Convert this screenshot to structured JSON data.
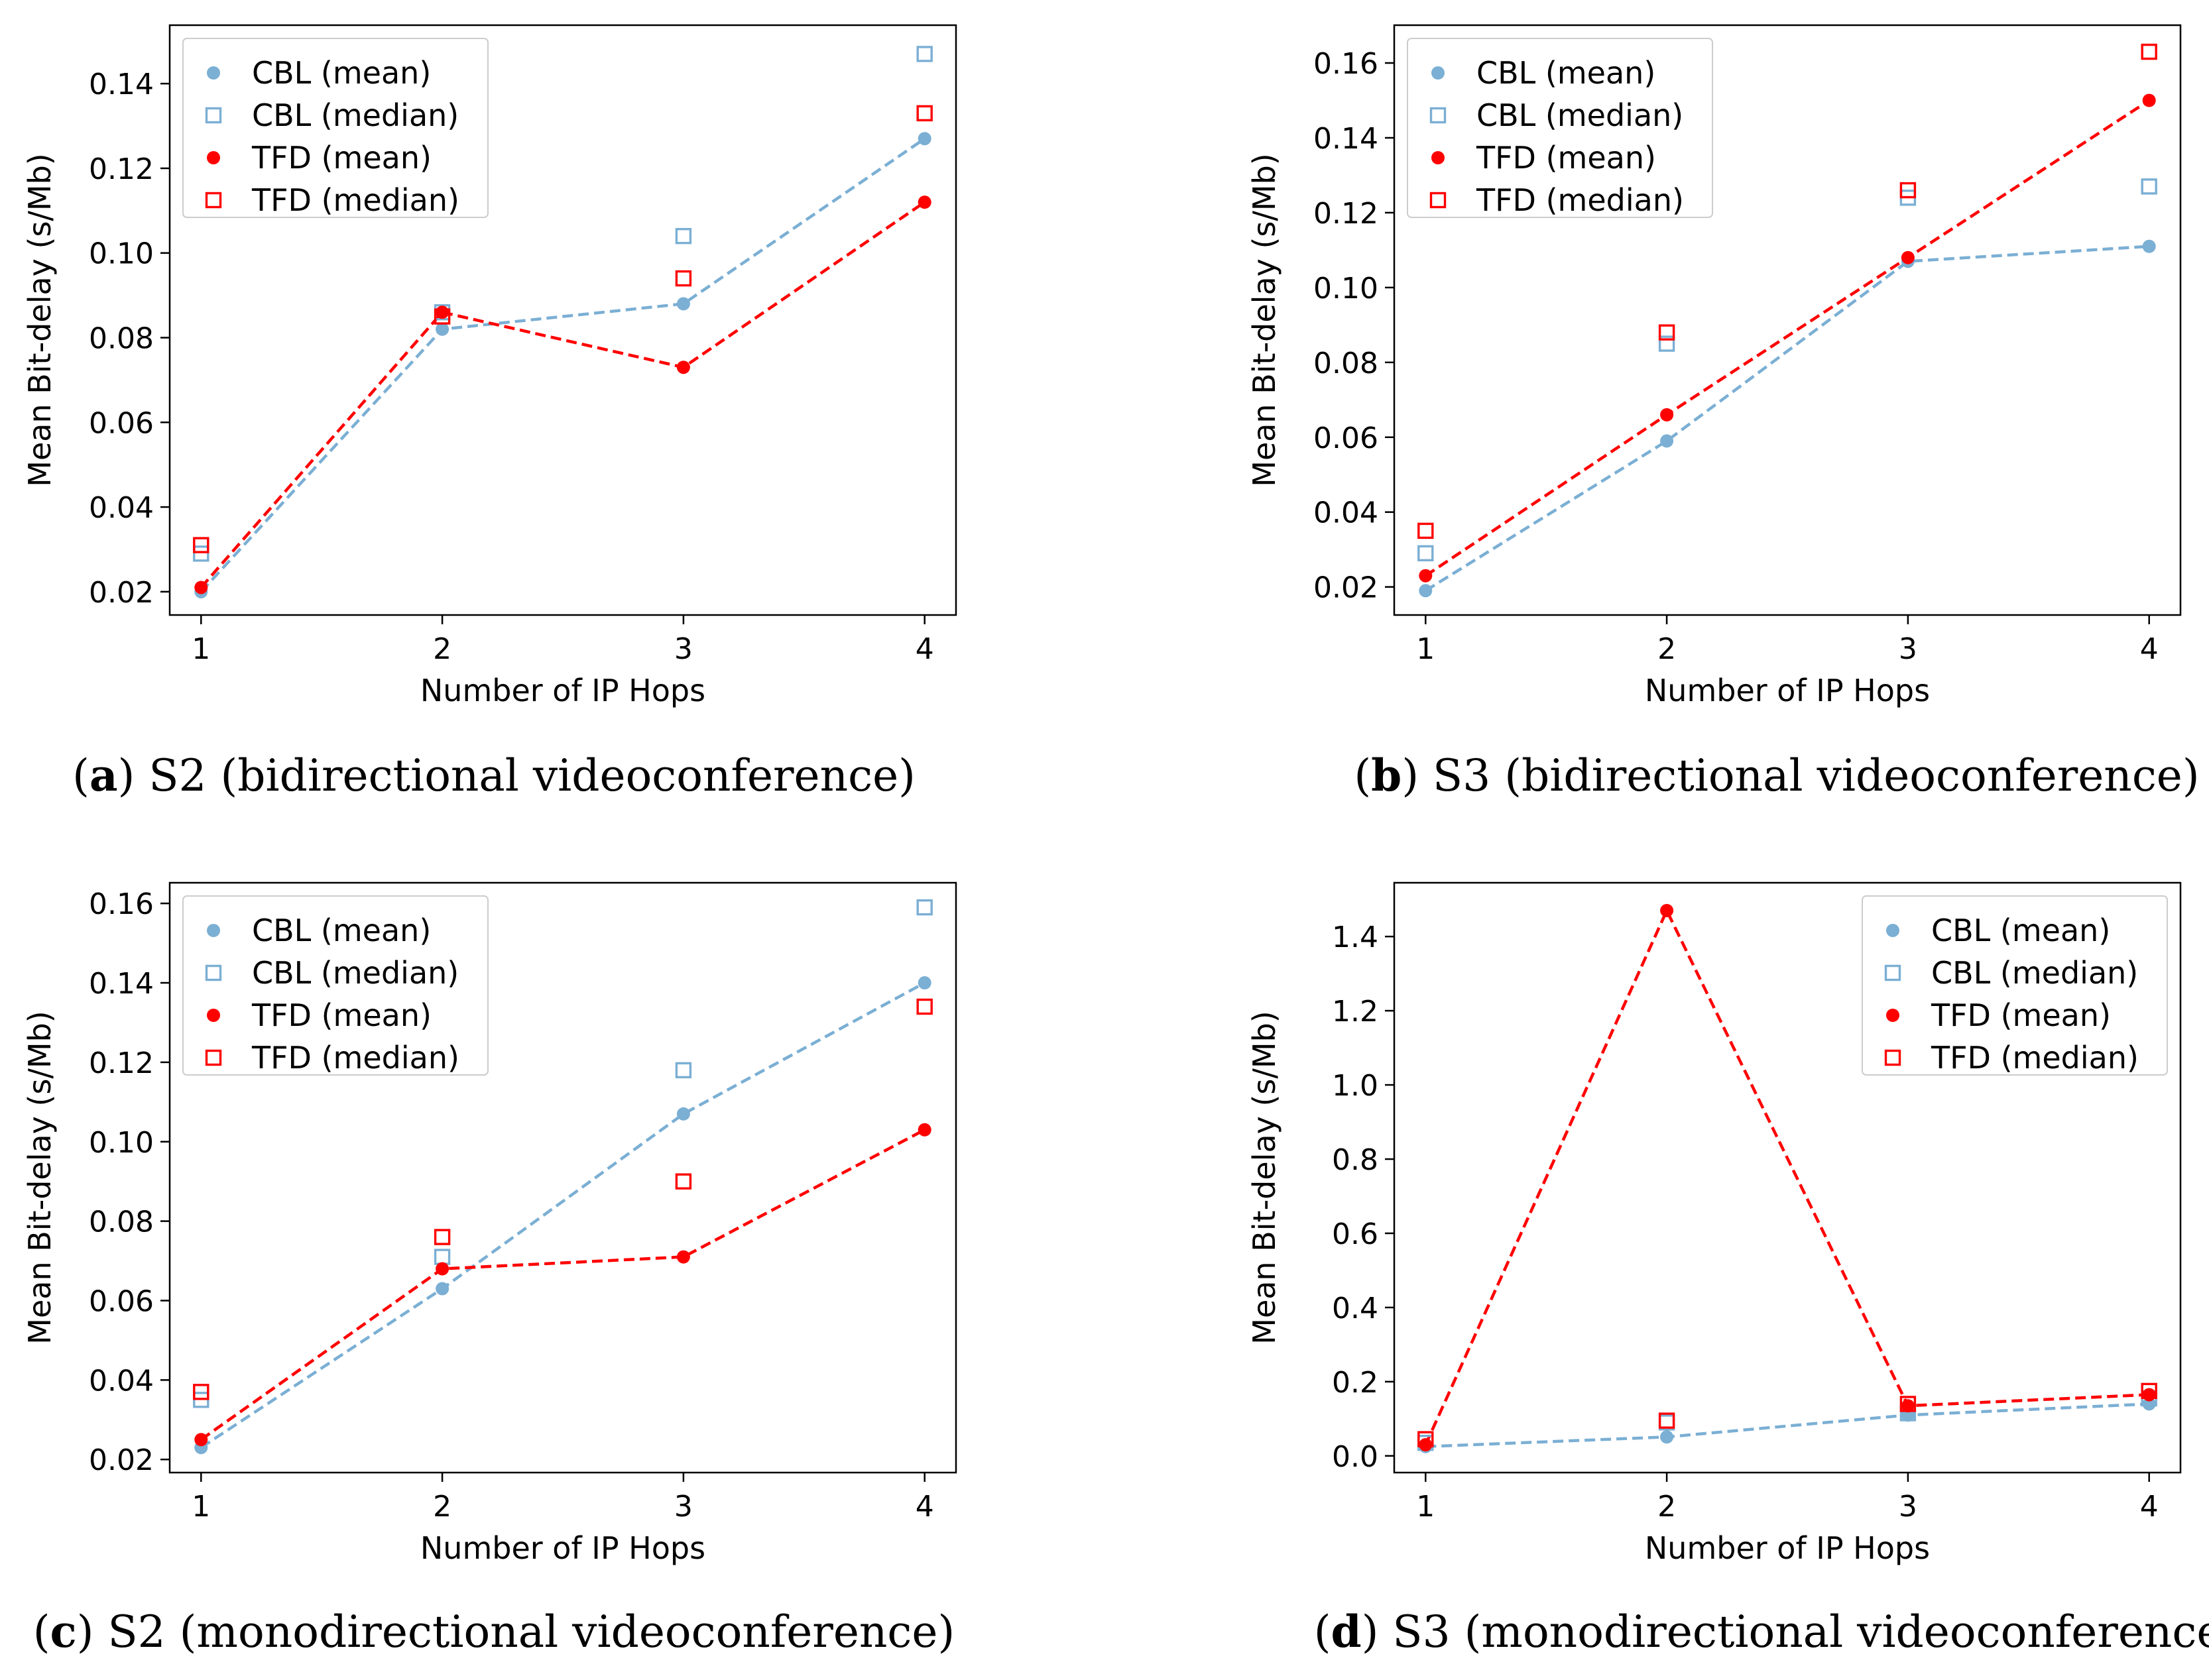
{
  "colors": {
    "cbl": "#7bafd4",
    "tfd": "#ff0000",
    "axis": "#000000"
  },
  "legend_entries": [
    "CBL (mean)",
    "CBL (median)",
    "TFD (mean)",
    "TFD (median)"
  ],
  "chart_data": [
    {
      "type": "line",
      "panel": "a",
      "caption_letter": "a",
      "caption_text": "S2 (bidirectional videoconference)",
      "xlabel": "Number of IP Hops",
      "ylabel": "Mean Bit-delay (s/Mb)",
      "x": [
        1,
        2,
        3,
        4
      ],
      "xticks": [
        "1",
        "2",
        "3",
        "4"
      ],
      "xlim": [
        0.87,
        4.13
      ],
      "ylim": [
        0.0145,
        0.1538
      ],
      "yticks": [
        0.02,
        0.04,
        0.06,
        0.08,
        0.1,
        0.12,
        0.14
      ],
      "ytick_labels": [
        "0.02",
        "0.04",
        "0.06",
        "0.08",
        "0.10",
        "0.12",
        "0.14"
      ],
      "legend_position": "upper-left",
      "series": [
        {
          "name": "CBL (mean)",
          "kind": "mean",
          "color_key": "cbl",
          "values": [
            0.02,
            0.082,
            0.088,
            0.127
          ]
        },
        {
          "name": "CBL (median)",
          "kind": "median",
          "color_key": "cbl",
          "values": [
            0.029,
            0.086,
            0.104,
            0.147
          ]
        },
        {
          "name": "TFD (mean)",
          "kind": "mean",
          "color_key": "tfd",
          "values": [
            0.021,
            0.086,
            0.073,
            0.112
          ]
        },
        {
          "name": "TFD (median)",
          "kind": "median",
          "color_key": "tfd",
          "values": [
            0.031,
            0.085,
            0.094,
            0.133
          ]
        }
      ]
    },
    {
      "type": "line",
      "panel": "b",
      "caption_letter": "b",
      "caption_text": "S3 (bidirectional videoconference)",
      "xlabel": "Number of IP Hops",
      "ylabel": "Mean Bit-delay (s/Mb)",
      "x": [
        1,
        2,
        3,
        4
      ],
      "xticks": [
        "1",
        "2",
        "3",
        "4"
      ],
      "xlim": [
        0.87,
        4.13
      ],
      "ylim": [
        0.0125,
        0.1701
      ],
      "yticks": [
        0.02,
        0.04,
        0.06,
        0.08,
        0.1,
        0.12,
        0.14,
        0.16
      ],
      "ytick_labels": [
        "0.02",
        "0.04",
        "0.06",
        "0.08",
        "0.10",
        "0.12",
        "0.14",
        "0.16"
      ],
      "legend_position": "upper-left",
      "series": [
        {
          "name": "CBL (mean)",
          "kind": "mean",
          "color_key": "cbl",
          "values": [
            0.019,
            0.059,
            0.107,
            0.111
          ]
        },
        {
          "name": "CBL (median)",
          "kind": "median",
          "color_key": "cbl",
          "values": [
            0.029,
            0.085,
            0.124,
            0.127
          ]
        },
        {
          "name": "TFD (mean)",
          "kind": "mean",
          "color_key": "tfd",
          "values": [
            0.023,
            0.066,
            0.108,
            0.15
          ]
        },
        {
          "name": "TFD (median)",
          "kind": "median",
          "color_key": "tfd",
          "values": [
            0.035,
            0.088,
            0.126,
            0.163
          ]
        }
      ]
    },
    {
      "type": "line",
      "panel": "c",
      "caption_letter": "c",
      "caption_text": "S2 (monodirectional videoconference)",
      "xlabel": "Number of IP Hops",
      "ylabel": "Mean Bit-delay (s/Mb)",
      "x": [
        1,
        2,
        3,
        4
      ],
      "xticks": [
        "1",
        "2",
        "3",
        "4"
      ],
      "xlim": [
        0.87,
        4.13
      ],
      "ylim": [
        0.0167,
        0.1652
      ],
      "yticks": [
        0.02,
        0.04,
        0.06,
        0.08,
        0.1,
        0.12,
        0.14,
        0.16
      ],
      "ytick_labels": [
        "0.02",
        "0.04",
        "0.06",
        "0.08",
        "0.10",
        "0.12",
        "0.14",
        "0.16"
      ],
      "legend_position": "upper-left",
      "series": [
        {
          "name": "CBL (mean)",
          "kind": "mean",
          "color_key": "cbl",
          "values": [
            0.023,
            0.063,
            0.107,
            0.14
          ]
        },
        {
          "name": "CBL (median)",
          "kind": "median",
          "color_key": "cbl",
          "values": [
            0.035,
            0.071,
            0.118,
            0.159
          ]
        },
        {
          "name": "TFD (mean)",
          "kind": "mean",
          "color_key": "tfd",
          "values": [
            0.025,
            0.068,
            0.071,
            0.103
          ]
        },
        {
          "name": "TFD (median)",
          "kind": "median",
          "color_key": "tfd",
          "values": [
            0.037,
            0.076,
            0.09,
            0.134
          ]
        }
      ]
    },
    {
      "type": "line",
      "panel": "d",
      "caption_letter": "d",
      "caption_text": "S3 (monodirectional videoconference)",
      "xlabel": "Number of IP Hops",
      "ylabel": "Mean Bit-delay (s/Mb)",
      "x": [
        1,
        2,
        3,
        4
      ],
      "xticks": [
        "1",
        "2",
        "3",
        "4"
      ],
      "xlim": [
        0.87,
        4.13
      ],
      "ylim": [
        -0.045,
        1.545
      ],
      "yticks": [
        0.0,
        0.2,
        0.4,
        0.6,
        0.8,
        1.0,
        1.2,
        1.4
      ],
      "ytick_labels": [
        "0.0",
        "0.2",
        "0.4",
        "0.6",
        "0.8",
        "1.0",
        "1.2",
        "1.4"
      ],
      "legend_position": "upper-right",
      "series": [
        {
          "name": "CBL (mean)",
          "kind": "mean",
          "color_key": "cbl",
          "values": [
            0.025,
            0.051,
            0.11,
            0.14
          ]
        },
        {
          "name": "CBL (median)",
          "kind": "median",
          "color_key": "cbl",
          "values": [
            0.035,
            0.09,
            0.115,
            0.155
          ]
        },
        {
          "name": "TFD (mean)",
          "kind": "mean",
          "color_key": "tfd",
          "values": [
            0.03,
            1.47,
            0.135,
            0.165
          ]
        },
        {
          "name": "TFD (median)",
          "kind": "median",
          "color_key": "tfd",
          "values": [
            0.045,
            0.095,
            0.14,
            0.175
          ]
        }
      ]
    }
  ]
}
